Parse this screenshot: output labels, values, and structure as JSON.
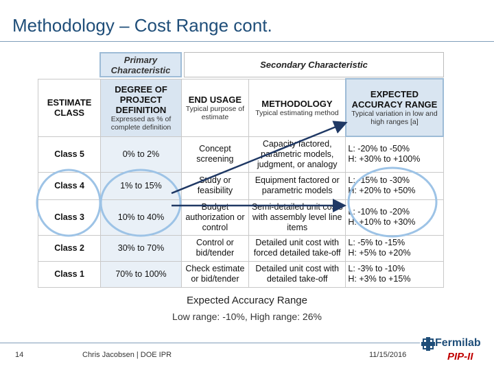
{
  "slide": {
    "title": "Methodology – Cost Range cont.",
    "page_number": "14",
    "author": "Chris Jacobsen | DOE IPR",
    "date": "11/15/2016"
  },
  "table": {
    "primary_header": "Primary Characteristic",
    "secondary_header": "Secondary Characteristic",
    "columns": [
      {
        "main": "ESTIMATE CLASS",
        "sub": ""
      },
      {
        "main": "DEGREE OF PROJECT DEFINITION",
        "sub": "Expressed as % of complete definition"
      },
      {
        "main": "END USAGE",
        "sub": "Typical purpose of estimate"
      },
      {
        "main": "METHODOLOGY",
        "sub": "Typical estimating method"
      },
      {
        "main": "EXPECTED ACCURACY RANGE",
        "sub": "Typical variation in low and high ranges [a]"
      }
    ],
    "rows": [
      {
        "class": "Class 5",
        "degree": "0% to 2%",
        "end_usage": "Concept screening",
        "methodology": "Capacity factored, parametric models, judgment, or analogy",
        "low": "L: -20% to -50%",
        "high": "H: +30% to +100%"
      },
      {
        "class": "Class 4",
        "degree": "1% to 15%",
        "end_usage": "Study or feasibility",
        "methodology": "Equipment factored or parametric models",
        "low": "L: -15% to -30%",
        "high": "H: +20% to +50%"
      },
      {
        "class": "Class 3",
        "degree": "10% to 40%",
        "end_usage": "Budget authorization or control",
        "methodology": "Semi-detailed unit costs with assembly level line items",
        "low": "L: -10% to -20%",
        "high": "H: +10% to +30%"
      },
      {
        "class": "Class 2",
        "degree": "30% to 70%",
        "end_usage": "Control or bid/tender",
        "methodology": "Detailed unit cost with forced detailed take-off",
        "low": "L: -5% to -15%",
        "high": "H: +5% to +20%"
      },
      {
        "class": "Class 1",
        "degree": "70% to 100%",
        "end_usage": "Check estimate or bid/tender",
        "methodology": "Detailed unit cost with detailed take-off",
        "low": "L: -3% to -10%",
        "high": "H: +3% to +15%"
      }
    ]
  },
  "caption": {
    "title": "Expected Accuracy Range",
    "subtitle": "Low range: -10%, High range: 26%"
  },
  "logo": {
    "name": "Fermilab",
    "sub": "PIP-II"
  },
  "colors": {
    "title": "#1f4e79",
    "highlight_ellipse": "#9dc3e6",
    "arrow": "#1f3864",
    "logo_sub": "#c00000"
  }
}
